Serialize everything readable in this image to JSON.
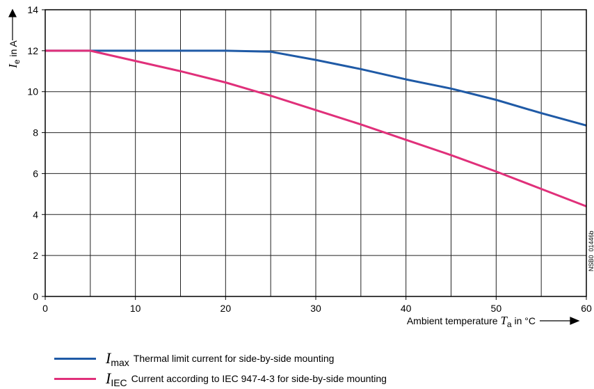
{
  "chart_data": {
    "type": "line",
    "x_axis": {
      "label_text": "Ambient temperature",
      "label_symbol": "T",
      "label_subscript": "a",
      "label_unit": "in °C",
      "range": [
        0,
        60
      ],
      "ticks": [
        0,
        10,
        20,
        30,
        40,
        50,
        60
      ]
    },
    "y_axis": {
      "label_symbol": "I",
      "label_subscript": "e",
      "label_unit": "in A",
      "range": [
        0,
        14
      ],
      "ticks": [
        0,
        2,
        4,
        6,
        8,
        10,
        12,
        14
      ]
    },
    "grid": {
      "x_step": 5,
      "y_step": 2,
      "on": true
    },
    "series": [
      {
        "key": "imax",
        "symbol": "I",
        "subscript": "max",
        "description": "Thermal limit current for side-by-side mounting",
        "color": "#1f5aa6",
        "points": [
          [
            0,
            12
          ],
          [
            5,
            12
          ],
          [
            10,
            12
          ],
          [
            15,
            12
          ],
          [
            20,
            12
          ],
          [
            25,
            11.95
          ],
          [
            30,
            11.55
          ],
          [
            35,
            11.1
          ],
          [
            40,
            10.6
          ],
          [
            45,
            10.15
          ],
          [
            50,
            9.6
          ],
          [
            55,
            8.95
          ],
          [
            60,
            8.35
          ]
        ]
      },
      {
        "key": "iiec",
        "symbol": "I",
        "subscript": "IEC",
        "description": "Current according to IEC 947-4-3 for side-by-side mounting",
        "color": "#e0307a",
        "points": [
          [
            0,
            12
          ],
          [
            5,
            12
          ],
          [
            10,
            11.5
          ],
          [
            15,
            11.0
          ],
          [
            20,
            10.45
          ],
          [
            25,
            9.8
          ],
          [
            30,
            9.1
          ],
          [
            35,
            8.4
          ],
          [
            40,
            7.65
          ],
          [
            45,
            6.9
          ],
          [
            50,
            6.1
          ],
          [
            55,
            5.25
          ],
          [
            60,
            4.4
          ]
        ]
      }
    ],
    "legend_position": "bottom-left",
    "annotation": "NSB0_01446b"
  }
}
